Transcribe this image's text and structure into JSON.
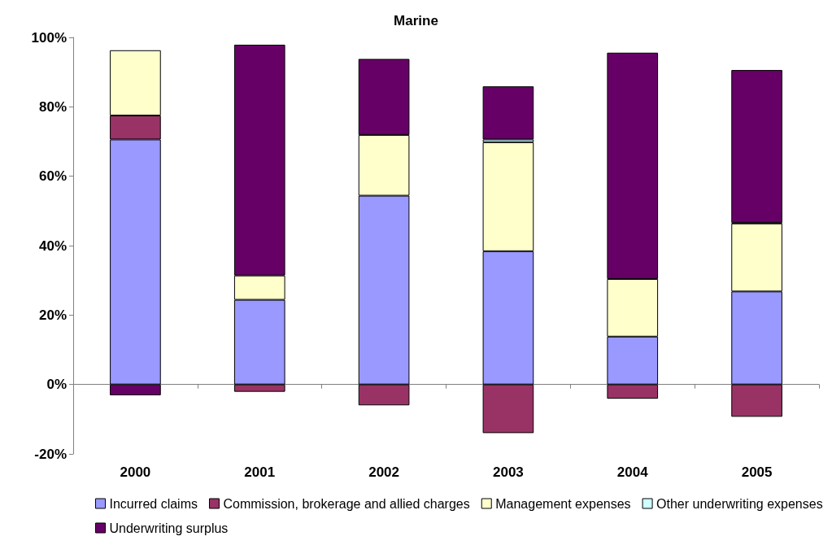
{
  "chart_data": {
    "type": "bar",
    "title": "Marine",
    "stacked": true,
    "categories": [
      "2000",
      "2001",
      "2002",
      "2003",
      "2004",
      "2005"
    ],
    "series": [
      {
        "name": "Incurred claims",
        "color": "#9999ff",
        "values": [
          70.6,
          24.4,
          54.4,
          38.4,
          13.8,
          26.8
        ]
      },
      {
        "name": "Commission, brokerage and allied charges",
        "color": "#993366",
        "values": [
          6.9,
          -2.1,
          -6.0,
          -14.0,
          -4.1,
          -9.3
        ]
      },
      {
        "name": "Management expenses",
        "color": "#ffffcc",
        "values": [
          18.8,
          7.0,
          17.5,
          31.4,
          16.6,
          19.6
        ]
      },
      {
        "name": "Other underwriting expenses",
        "color": "#ccffff",
        "values": [
          null,
          null,
          null,
          0.8,
          null,
          0.2
        ]
      },
      {
        "name": "Underwriting surplus",
        "color": "#660066",
        "values": [
          -3.1,
          66.5,
          21.9,
          15.3,
          65.2,
          44.0
        ]
      }
    ],
    "ylim": [
      -20,
      100
    ],
    "yticks": [
      {
        "value": -20,
        "label": "-20%"
      },
      {
        "value": 0,
        "label": "0%"
      },
      {
        "value": 20,
        "label": "20%"
      },
      {
        "value": 40,
        "label": "40%"
      },
      {
        "value": 60,
        "label": "60%"
      },
      {
        "value": 80,
        "label": "80%"
      },
      {
        "value": 100,
        "label": "100%"
      }
    ],
    "legend": "bottom"
  }
}
